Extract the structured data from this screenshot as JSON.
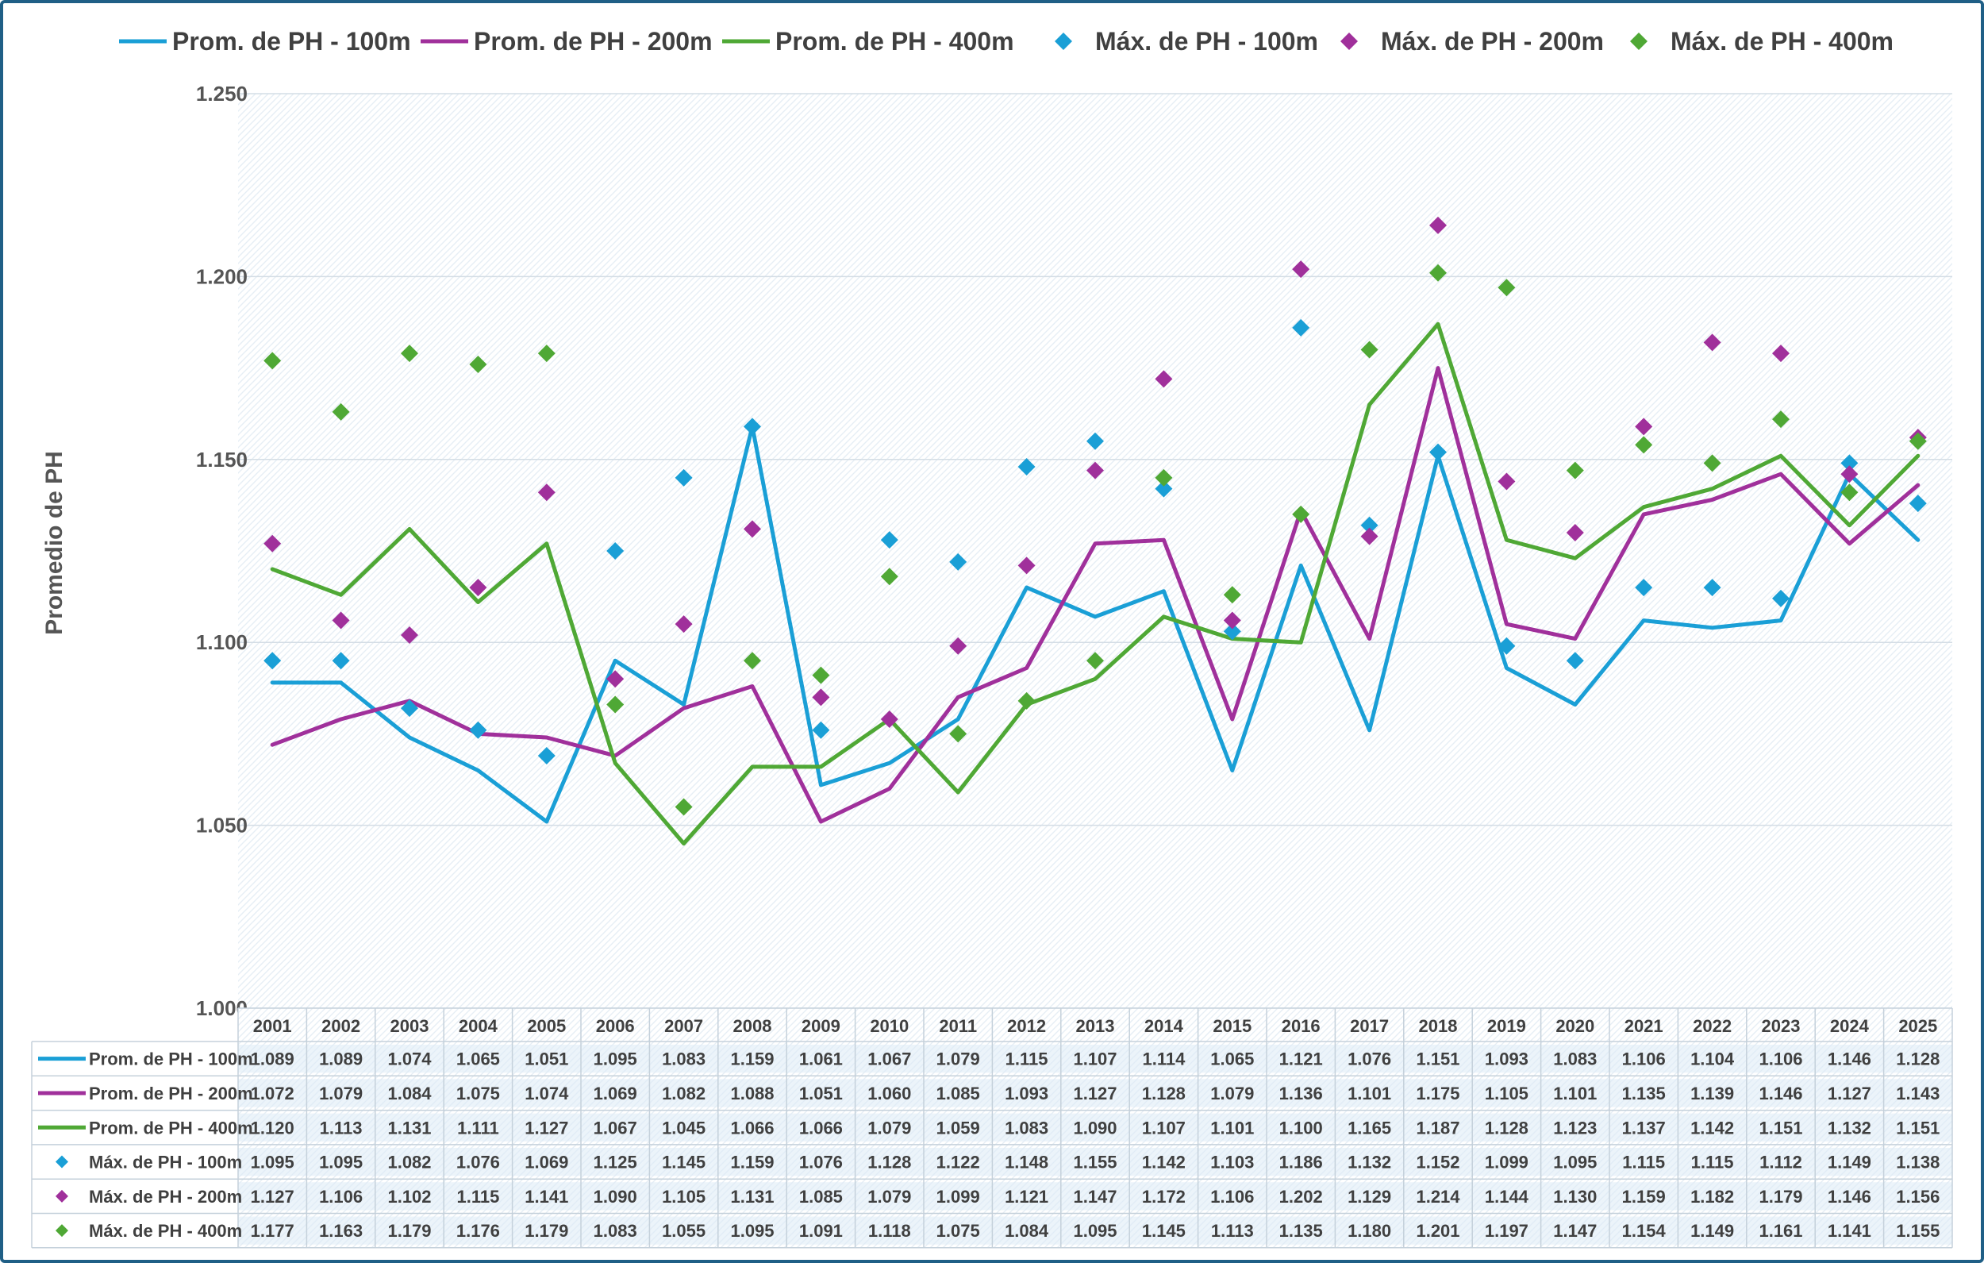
{
  "chart_data": {
    "type": "line",
    "ylabel": "Promedio de PH",
    "ylim": [
      1.0,
      1.25
    ],
    "y_ticks": [
      "1.000",
      "1.050",
      "1.100",
      "1.150",
      "1.200",
      "1.250"
    ],
    "grid": true,
    "legend_position": "top",
    "categories": [
      "2001",
      "2002",
      "2003",
      "2004",
      "2005",
      "2006",
      "2007",
      "2008",
      "2009",
      "2010",
      "2011",
      "2012",
      "2013",
      "2014",
      "2015",
      "2016",
      "2017",
      "2018",
      "2019",
      "2020",
      "2021",
      "2022",
      "2023",
      "2024",
      "2025"
    ],
    "series": [
      {
        "name": "Prom. de PH - 100m",
        "kind": "line",
        "color": "#1a9fd6",
        "values": [
          "1.089",
          "1.089",
          "1.074",
          "1.065",
          "1.051",
          "1.095",
          "1.083",
          "1.159",
          "1.061",
          "1.067",
          "1.079",
          "1.115",
          "1.107",
          "1.114",
          "1.065",
          "1.121",
          "1.076",
          "1.151",
          "1.093",
          "1.083",
          "1.106",
          "1.104",
          "1.106",
          "1.146",
          "1.128"
        ]
      },
      {
        "name": "Prom. de PH - 200m",
        "kind": "line",
        "color": "#a0309b",
        "values": [
          "1.072",
          "1.079",
          "1.084",
          "1.075",
          "1.074",
          "1.069",
          "1.082",
          "1.088",
          "1.051",
          "1.060",
          "1.085",
          "1.093",
          "1.127",
          "1.128",
          "1.079",
          "1.136",
          "1.101",
          "1.175",
          "1.105",
          "1.101",
          "1.135",
          "1.139",
          "1.146",
          "1.127",
          "1.143"
        ]
      },
      {
        "name": "Prom. de PH - 400m",
        "kind": "line",
        "color": "#4fa835",
        "values": [
          "1.120",
          "1.113",
          "1.131",
          "1.111",
          "1.127",
          "1.067",
          "1.045",
          "1.066",
          "1.066",
          "1.079",
          "1.059",
          "1.083",
          "1.090",
          "1.107",
          "1.101",
          "1.100",
          "1.165",
          "1.187",
          "1.128",
          "1.123",
          "1.137",
          "1.142",
          "1.151",
          "1.132",
          "1.151"
        ]
      },
      {
        "name": "Máx. de PH - 100m",
        "kind": "marker",
        "color": "#1a9fd6",
        "values": [
          "1.095",
          "1.095",
          "1.082",
          "1.076",
          "1.069",
          "1.125",
          "1.145",
          "1.159",
          "1.076",
          "1.128",
          "1.122",
          "1.148",
          "1.155",
          "1.142",
          "1.103",
          "1.186",
          "1.132",
          "1.152",
          "1.099",
          "1.095",
          "1.115",
          "1.115",
          "1.112",
          "1.149",
          "1.138"
        ]
      },
      {
        "name": "Máx. de PH - 200m",
        "kind": "marker",
        "color": "#a0309b",
        "values": [
          "1.127",
          "1.106",
          "1.102",
          "1.115",
          "1.141",
          "1.090",
          "1.105",
          "1.131",
          "1.085",
          "1.079",
          "1.099",
          "1.121",
          "1.147",
          "1.172",
          "1.106",
          "1.202",
          "1.129",
          "1.214",
          "1.144",
          "1.130",
          "1.159",
          "1.182",
          "1.179",
          "1.146",
          "1.156"
        ]
      },
      {
        "name": "Máx. de PH - 400m",
        "kind": "marker",
        "color": "#4fa835",
        "values": [
          "1.177",
          "1.163",
          "1.179",
          "1.176",
          "1.179",
          "1.083",
          "1.055",
          "1.095",
          "1.091",
          "1.118",
          "1.075",
          "1.084",
          "1.095",
          "1.145",
          "1.113",
          "1.135",
          "1.180",
          "1.201",
          "1.197",
          "1.147",
          "1.154",
          "1.149",
          "1.161",
          "1.141",
          "1.155"
        ]
      }
    ]
  }
}
